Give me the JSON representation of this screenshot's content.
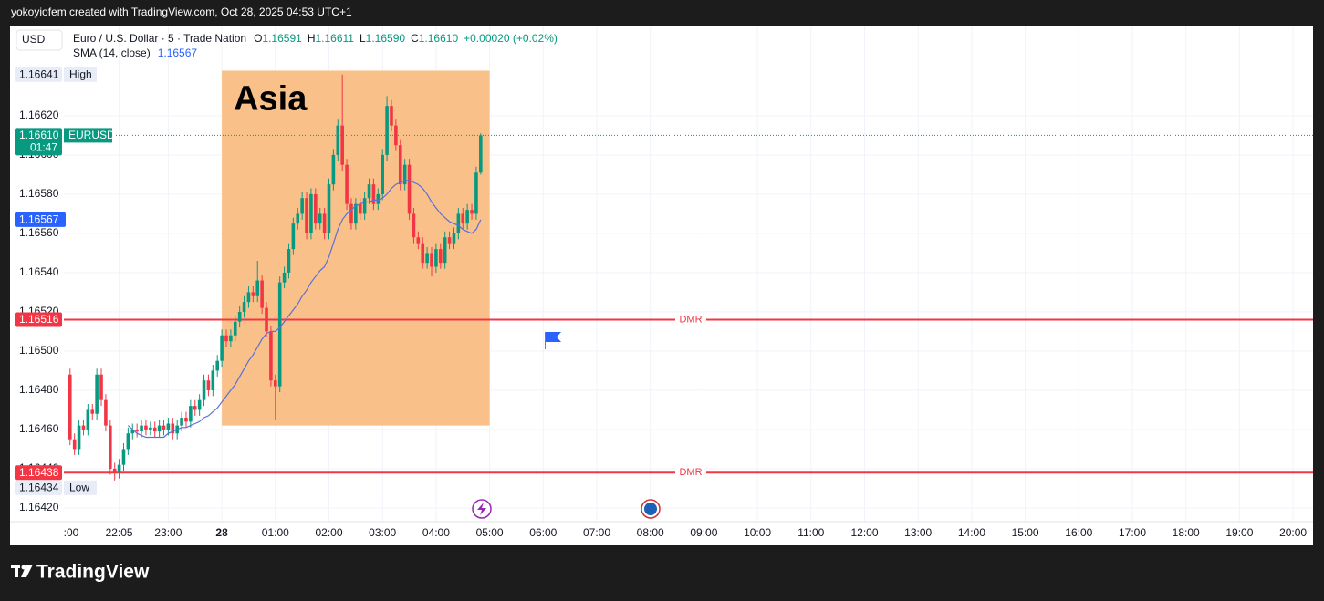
{
  "header": {
    "attribution": "yokoyiofem created with TradingView.com, Oct 28, 2025 04:53 UTC+1"
  },
  "chart_data": {
    "type": "candlestick",
    "currency": "USD",
    "title": "Euro / U.S. Dollar · 5 · Trade Nation",
    "legend": [
      {
        "key": "O",
        "value": "1.16591"
      },
      {
        "key": "H",
        "value": "1.16611"
      },
      {
        "key": "L",
        "value": "1.16590"
      },
      {
        "key": "C",
        "value": "1.16610"
      }
    ],
    "change": "+0.00020 (+0.02%)",
    "up_color": "#089981",
    "down_color": "#f23645",
    "x": [
      "21:10",
      "21:15",
      "21:20",
      "21:25",
      "21:30",
      "21:35",
      "21:40",
      "21:45",
      "21:50",
      "21:55",
      "22:00",
      "22:05",
      "22:10",
      "22:15",
      "22:20",
      "22:25",
      "22:30",
      "22:35",
      "22:40",
      "22:45",
      "22:50",
      "22:55",
      "23:00",
      "23:05",
      "23:10",
      "23:15",
      "23:20",
      "23:25",
      "23:30",
      "23:35",
      "23:40",
      "23:45",
      "23:50",
      "23:55",
      "00:00",
      "00:05",
      "00:10",
      "00:15",
      "00:20",
      "00:25",
      "00:30",
      "00:35",
      "00:40",
      "00:45",
      "00:50",
      "00:55",
      "01:00",
      "01:05",
      "01:10",
      "01:15",
      "01:20",
      "01:25",
      "01:30",
      "01:35",
      "01:40",
      "01:45",
      "01:50",
      "01:55",
      "02:00",
      "02:05",
      "02:10",
      "02:15",
      "02:20",
      "02:25",
      "02:30",
      "02:35",
      "02:40",
      "02:45",
      "02:50",
      "02:55",
      "03:00",
      "03:05",
      "03:10",
      "03:15",
      "03:20",
      "03:25",
      "03:30",
      "03:35",
      "03:40",
      "03:45",
      "03:50",
      "03:55",
      "04:00",
      "04:05",
      "04:10",
      "04:15",
      "04:20",
      "04:25",
      "04:30",
      "04:35",
      "04:40",
      "04:45",
      "04:50"
    ],
    "open": [
      1.16488,
      1.16455,
      1.1645,
      1.16462,
      1.1646,
      1.1647,
      1.16468,
      1.16488,
      1.16475,
      1.16462,
      1.1644,
      1.16438,
      1.16442,
      1.1645,
      1.16458,
      1.1646,
      1.16459,
      1.16462,
      1.1646,
      1.16461,
      1.16459,
      1.16462,
      1.1646,
      1.16463,
      1.16458,
      1.16462,
      1.16466,
      1.16464,
      1.16472,
      1.1647,
      1.16475,
      1.16485,
      1.1648,
      1.1649,
      1.16495,
      1.16508,
      1.16505,
      1.16508,
      1.16515,
      1.1652,
      1.16525,
      1.1653,
      1.16528,
      1.16536,
      1.16522,
      1.1651,
      1.16485,
      1.16482,
      1.16535,
      1.1654,
      1.16552,
      1.16565,
      1.1657,
      1.16578,
      1.1656,
      1.1658,
      1.16565,
      1.1657,
      1.1656,
      1.16585,
      1.166,
      1.16615,
      1.16595,
      1.16575,
      1.16565,
      1.16575,
      1.1657,
      1.16578,
      1.16585,
      1.16575,
      1.1658,
      1.166,
      1.16625,
      1.16615,
      1.16605,
      1.16585,
      1.16595,
      1.1657,
      1.16558,
      1.16555,
      1.16545,
      1.1655,
      1.16543,
      1.16552,
      1.16545,
      1.16558,
      1.16555,
      1.1656,
      1.1657,
      1.16565,
      1.16572,
      1.1657,
      1.16591
    ],
    "high": [
      1.16491,
      1.16458,
      1.16465,
      1.16465,
      1.16473,
      1.16473,
      1.16491,
      1.16491,
      1.16478,
      1.16465,
      1.16443,
      1.16445,
      1.16453,
      1.16461,
      1.16463,
      1.16463,
      1.16465,
      1.16465,
      1.16464,
      1.16464,
      1.16465,
      1.16465,
      1.16466,
      1.16466,
      1.16465,
      1.16469,
      1.16469,
      1.16475,
      1.16475,
      1.16478,
      1.16488,
      1.16488,
      1.16493,
      1.16498,
      1.16511,
      1.16511,
      1.16511,
      1.16518,
      1.16523,
      1.16528,
      1.16533,
      1.16533,
      1.16546,
      1.16539,
      1.16525,
      1.16513,
      1.16488,
      1.16538,
      1.16543,
      1.16555,
      1.16568,
      1.16573,
      1.16581,
      1.16581,
      1.16583,
      1.16583,
      1.16573,
      1.16573,
      1.16588,
      1.16603,
      1.16618,
      1.16641,
      1.16598,
      1.16578,
      1.16578,
      1.16578,
      1.16581,
      1.16588,
      1.16588,
      1.16583,
      1.16603,
      1.1663,
      1.16628,
      1.16618,
      1.16608,
      1.16598,
      1.16598,
      1.16573,
      1.16561,
      1.16558,
      1.16553,
      1.16553,
      1.16555,
      1.16555,
      1.16561,
      1.16561,
      1.16563,
      1.16573,
      1.16573,
      1.16575,
      1.16575,
      1.16594,
      1.16611
    ],
    "low": [
      1.16452,
      1.16447,
      1.16447,
      1.16457,
      1.16457,
      1.16465,
      1.16465,
      1.16472,
      1.16459,
      1.16437,
      1.16434,
      1.16435,
      1.16439,
      1.16447,
      1.16455,
      1.16456,
      1.16456,
      1.16457,
      1.16457,
      1.16456,
      1.16456,
      1.16457,
      1.16457,
      1.16455,
      1.16455,
      1.16459,
      1.16461,
      1.16461,
      1.16467,
      1.16467,
      1.16472,
      1.16477,
      1.16477,
      1.16487,
      1.16492,
      1.16502,
      1.16502,
      1.16505,
      1.16512,
      1.16517,
      1.16522,
      1.16525,
      1.16525,
      1.16519,
      1.16507,
      1.16482,
      1.16465,
      1.16479,
      1.16532,
      1.16537,
      1.16549,
      1.16562,
      1.16567,
      1.16557,
      1.16557,
      1.16562,
      1.16562,
      1.16557,
      1.16557,
      1.16582,
      1.16597,
      1.16592,
      1.16572,
      1.16562,
      1.16562,
      1.16567,
      1.16567,
      1.16575,
      1.16572,
      1.16572,
      1.16577,
      1.16597,
      1.16612,
      1.16602,
      1.16582,
      1.16582,
      1.16567,
      1.16555,
      1.16552,
      1.16542,
      1.16542,
      1.16538,
      1.1654,
      1.16542,
      1.16542,
      1.16552,
      1.16552,
      1.16557,
      1.16562,
      1.16562,
      1.16567,
      1.16567,
      1.1659
    ],
    "close": [
      1.16455,
      1.1645,
      1.16462,
      1.1646,
      1.1647,
      1.16468,
      1.16488,
      1.16475,
      1.16462,
      1.1644,
      1.16438,
      1.16442,
      1.1645,
      1.16458,
      1.1646,
      1.16459,
      1.16462,
      1.1646,
      1.16461,
      1.16459,
      1.16462,
      1.1646,
      1.16463,
      1.16458,
      1.16462,
      1.16466,
      1.16464,
      1.16472,
      1.1647,
      1.16475,
      1.16485,
      1.1648,
      1.1649,
      1.16495,
      1.16508,
      1.16505,
      1.16508,
      1.16515,
      1.1652,
      1.16525,
      1.1653,
      1.16528,
      1.16536,
      1.16522,
      1.1651,
      1.16485,
      1.16482,
      1.16535,
      1.1654,
      1.16552,
      1.16565,
      1.1657,
      1.16578,
      1.1656,
      1.1658,
      1.16565,
      1.1657,
      1.1656,
      1.16585,
      1.166,
      1.16615,
      1.16595,
      1.16575,
      1.16565,
      1.16575,
      1.1657,
      1.16578,
      1.16585,
      1.16575,
      1.1658,
      1.166,
      1.16625,
      1.16615,
      1.16605,
      1.16585,
      1.16595,
      1.1657,
      1.16558,
      1.16555,
      1.16545,
      1.1655,
      1.16543,
      1.16552,
      1.16545,
      1.16558,
      1.16555,
      1.1656,
      1.1657,
      1.16565,
      1.16572,
      1.1657,
      1.16591,
      1.1661
    ],
    "sma": {
      "name": "SMA (14, close)",
      "color": "#5b6fd6",
      "values": [
        null,
        null,
        null,
        null,
        null,
        null,
        null,
        null,
        null,
        null,
        null,
        null,
        null,
        1.16462,
        1.1646,
        1.16458,
        1.16457,
        1.16456,
        1.16456,
        1.16456,
        1.16456,
        1.16456,
        1.16458,
        1.16459,
        1.1646,
        1.16461,
        1.16461,
        1.16462,
        1.16463,
        1.16464,
        1.16466,
        1.16467,
        1.16469,
        1.16471,
        1.16474,
        1.16477,
        1.1648,
        1.16483,
        1.16487,
        1.16491,
        1.16495,
        1.16498,
        1.16502,
        1.16506,
        1.16509,
        1.1651,
        1.1651,
        1.16512,
        1.16515,
        1.16518,
        1.16521,
        1.16524,
        1.16528,
        1.16531,
        1.16535,
        1.16538,
        1.16541,
        1.16543,
        1.16548,
        1.16555,
        1.16562,
        1.16567,
        1.1657,
        1.16572,
        1.16574,
        1.16575,
        1.16576,
        1.16576,
        1.16577,
        1.16577,
        1.16578,
        1.1658,
        1.16583,
        1.16585,
        1.16586,
        1.16587,
        1.16587,
        1.16586,
        1.16585,
        1.16583,
        1.1658,
        1.16576,
        1.16573,
        1.1657,
        1.16568,
        1.16566,
        1.16565,
        1.16564,
        1.16562,
        1.16561,
        1.1656,
        1.16562,
        1.16567
      ]
    },
    "ylim": [
      1.16413,
      1.16666
    ],
    "yticks": [
      {
        "value": 1.1642,
        "label": "1.16420"
      },
      {
        "value": 1.1644,
        "label": "1.16440"
      },
      {
        "value": 1.1646,
        "label": "1.16460"
      },
      {
        "value": 1.1648,
        "label": "1.16480"
      },
      {
        "value": 1.165,
        "label": "1.16500"
      },
      {
        "value": 1.1652,
        "label": "1.16520"
      },
      {
        "value": 1.1654,
        "label": "1.16540"
      },
      {
        "value": 1.1656,
        "label": "1.16560"
      },
      {
        "value": 1.1658,
        "label": "1.16580"
      },
      {
        "value": 1.166,
        "label": "1.16600"
      },
      {
        "value": 1.1662,
        "label": "1.16620"
      }
    ],
    "xticks": [
      {
        "value": "21:00",
        "label": ":00"
      },
      "22:05",
      "23:00",
      {
        "value": "00:00",
        "label": "28"
      },
      "01:00",
      "02:00",
      "03:00",
      "04:00",
      "05:00",
      "06:00",
      "07:00",
      "08:00",
      "09:00",
      "10:00",
      "11:00",
      "12:00",
      "13:00",
      "14:00",
      "15:00",
      "16:00",
      "17:00",
      "18:00",
      "19:00",
      "20:00"
    ],
    "grid": true,
    "box": {
      "label": "Asia",
      "from": "00:00",
      "to": "05:00",
      "top": 1.16643,
      "bottom": 1.16462,
      "color": "#f9c08a"
    },
    "lines": [
      {
        "value": 1.16516,
        "label": "DMR",
        "color": "#f23645"
      },
      {
        "value": 1.16438,
        "label": "DMR",
        "color": "#f23645"
      }
    ],
    "last_price": {
      "price": {
        "value": 1.1661,
        "label": "1.16610"
      },
      "symbol": "EURUSD",
      "countdown": "01:47"
    },
    "high_mark": {
      "value": 1.16641,
      "label": "High"
    },
    "low_mark": {
      "value": 1.16434,
      "label": "Low"
    }
  },
  "footer": {
    "brand": "TradingView"
  }
}
